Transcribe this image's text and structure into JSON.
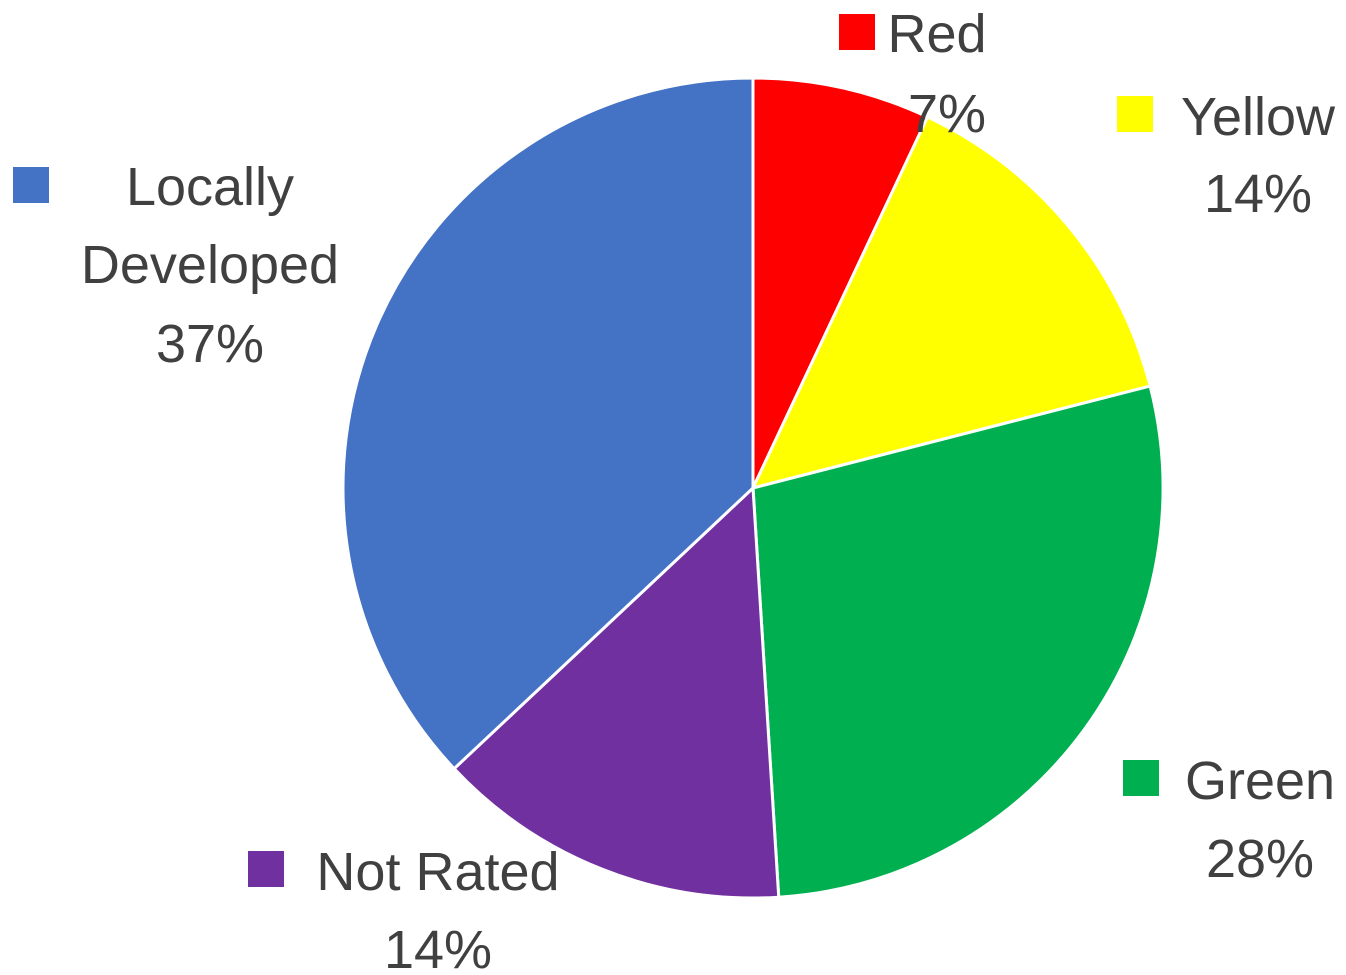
{
  "chart_data": {
    "type": "pie",
    "title": "",
    "slices": [
      {
        "name": "Red",
        "value": 7,
        "label": "7%",
        "color": "#FF0000"
      },
      {
        "name": "Yellow",
        "value": 14,
        "label": "14%",
        "color": "#FFFF00"
      },
      {
        "name": "Green",
        "value": 28,
        "label": "28%",
        "color": "#00B050"
      },
      {
        "name": "Not Rated",
        "value": 14,
        "label": "14%",
        "color": "#7030A0"
      },
      {
        "name": "Locally Developed",
        "value": 37,
        "label": "37%",
        "color": "#4472C4"
      }
    ],
    "start_angle": "12 o'clock",
    "direction": "clockwise"
  }
}
